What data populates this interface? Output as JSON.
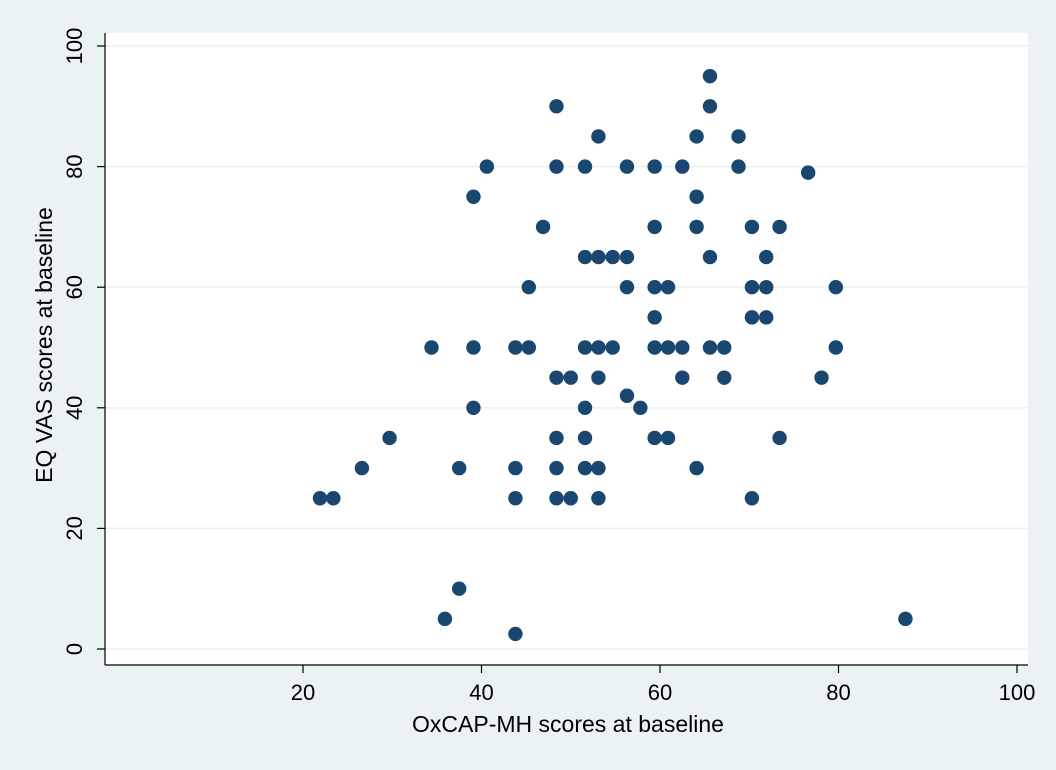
{
  "chart_data": {
    "type": "scatter",
    "title": "",
    "xlabel": "OxCAP-MH scores at baseline",
    "ylabel": "EQ VAS scores at baseline",
    "xlim": [
      0,
      100
    ],
    "ylim": [
      0,
      100
    ],
    "xticks": [
      "20",
      "40",
      "60",
      "80",
      "100"
    ],
    "yticks": [
      "0",
      "20",
      "40",
      "60",
      "80",
      "100"
    ],
    "grid": "horizontal",
    "legend": "none",
    "colors": {
      "background": "#eaf2f3",
      "plot_area": "#ffffff",
      "marker": "#1a476f",
      "gridline": "#eaf2f3",
      "axis": "#000000"
    },
    "series": [
      {
        "points": [
          [
            21.9,
            25
          ],
          [
            23.4,
            25
          ],
          [
            26.6,
            30
          ],
          [
            29.7,
            35
          ],
          [
            34.4,
            50
          ],
          [
            35.9,
            5
          ],
          [
            37.5,
            30
          ],
          [
            37.5,
            10
          ],
          [
            39.1,
            75
          ],
          [
            39.1,
            50
          ],
          [
            39.1,
            40
          ],
          [
            40.6,
            80
          ],
          [
            43.8,
            50
          ],
          [
            43.8,
            30
          ],
          [
            43.8,
            25
          ],
          [
            43.8,
            2.5
          ],
          [
            45.3,
            60
          ],
          [
            45.3,
            50
          ],
          [
            46.9,
            70
          ],
          [
            48.4,
            90
          ],
          [
            48.4,
            80
          ],
          [
            48.4,
            45
          ],
          [
            48.4,
            35
          ],
          [
            48.4,
            30
          ],
          [
            48.4,
            25
          ],
          [
            50.0,
            45
          ],
          [
            50.0,
            25
          ],
          [
            51.6,
            80
          ],
          [
            51.6,
            65
          ],
          [
            51.6,
            50
          ],
          [
            51.6,
            40
          ],
          [
            51.6,
            35
          ],
          [
            51.6,
            30
          ],
          [
            53.1,
            85
          ],
          [
            53.1,
            65
          ],
          [
            53.1,
            50
          ],
          [
            53.1,
            45
          ],
          [
            53.1,
            30
          ],
          [
            53.1,
            25
          ],
          [
            54.7,
            65
          ],
          [
            54.7,
            50
          ],
          [
            56.3,
            80
          ],
          [
            56.3,
            65
          ],
          [
            56.3,
            60
          ],
          [
            56.3,
            42
          ],
          [
            57.8,
            40
          ],
          [
            59.4,
            80
          ],
          [
            59.4,
            70
          ],
          [
            59.4,
            60
          ],
          [
            59.4,
            55
          ],
          [
            59.4,
            50
          ],
          [
            59.4,
            35
          ],
          [
            60.9,
            60
          ],
          [
            60.9,
            50
          ],
          [
            60.9,
            35
          ],
          [
            62.5,
            80
          ],
          [
            62.5,
            50
          ],
          [
            62.5,
            45
          ],
          [
            64.1,
            85
          ],
          [
            64.1,
            75
          ],
          [
            64.1,
            70
          ],
          [
            64.1,
            30
          ],
          [
            65.6,
            95
          ],
          [
            65.6,
            90
          ],
          [
            65.6,
            65
          ],
          [
            65.6,
            50
          ],
          [
            67.2,
            50
          ],
          [
            67.2,
            45
          ],
          [
            68.8,
            85
          ],
          [
            68.8,
            80
          ],
          [
            70.3,
            70
          ],
          [
            70.3,
            60
          ],
          [
            70.3,
            55
          ],
          [
            70.3,
            25
          ],
          [
            71.9,
            65
          ],
          [
            71.9,
            60
          ],
          [
            71.9,
            55
          ],
          [
            73.4,
            70
          ],
          [
            73.4,
            35
          ],
          [
            76.6,
            79
          ],
          [
            78.1,
            45
          ],
          [
            79.7,
            60
          ],
          [
            79.7,
            50
          ],
          [
            87.5,
            5
          ]
        ]
      }
    ]
  }
}
